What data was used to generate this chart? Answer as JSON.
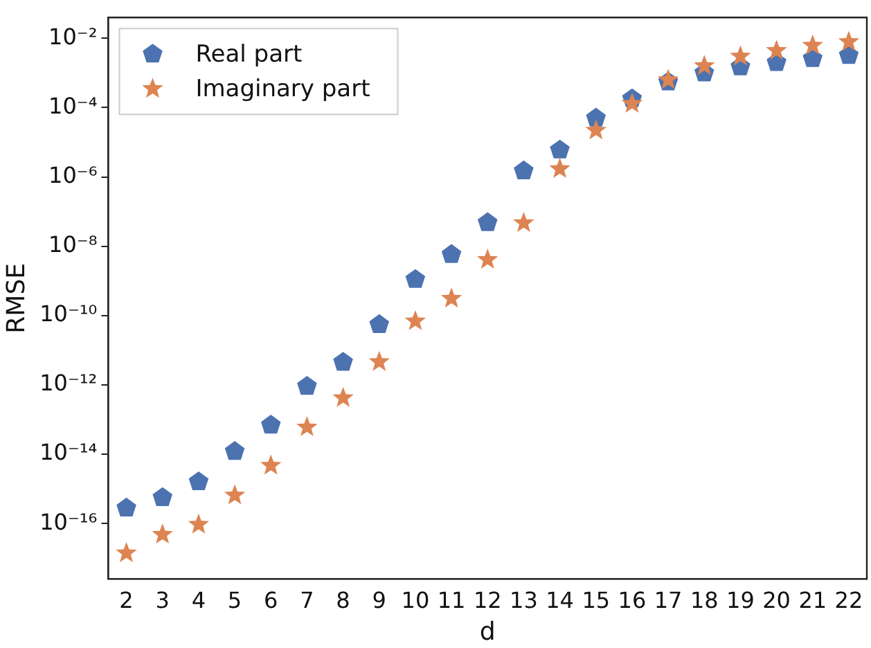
{
  "chart_data": {
    "type": "scatter",
    "xlabel": "d",
    "ylabel": "RMSE",
    "log": "y",
    "legend": "top left",
    "categories": [
      "2",
      "3",
      "4",
      "5",
      "6",
      "7",
      "8",
      "9",
      "10",
      "11",
      "12",
      "13",
      "14",
      "15",
      "16",
      "17",
      "18",
      "19",
      "20",
      "21",
      "22"
    ],
    "ylim": [
      2.5e-18,
      0.04
    ],
    "yticks": [
      {
        "value": 1e-16,
        "label": "10⁻¹⁶"
      },
      {
        "value": 1e-14,
        "label": "10⁻¹⁴"
      },
      {
        "value": 1e-12,
        "label": "10⁻¹²"
      },
      {
        "value": 1e-10,
        "label": "10⁻¹⁰"
      },
      {
        "value": 1e-08,
        "label": "10⁻⁸"
      },
      {
        "value": 1e-06,
        "label": "10⁻⁶"
      },
      {
        "value": 0.0001,
        "label": "10⁻⁴"
      },
      {
        "value": 0.01,
        "label": "10⁻²"
      }
    ],
    "series": [
      {
        "name": "Real part",
        "color": "#4c72b0",
        "values": [
          2.8e-16,
          5.6e-16,
          1.6e-15,
          1.2e-14,
          6.9e-14,
          9.1e-13,
          4.5e-12,
          5.5e-11,
          1.1e-09,
          5.8e-09,
          4.8e-08,
          1.5e-06,
          6e-06,
          5e-05,
          0.00018,
          0.00055,
          0.001,
          0.0015,
          0.002,
          0.0026,
          0.0032
        ]
      },
      {
        "name": "Imaginary part",
        "color": "#dd8452",
        "marker": "star",
        "values": [
          1.4e-17,
          4.8e-17,
          9.3e-17,
          6.5e-16,
          4.7e-15,
          6e-14,
          4.2e-13,
          4.6e-12,
          6.9e-11,
          3.1e-10,
          4.1e-09,
          4.7e-08,
          1.7e-06,
          2.2e-05,
          0.00013,
          0.00063,
          0.0016,
          0.003,
          0.0044,
          0.0062,
          0.0079
        ]
      }
    ]
  }
}
